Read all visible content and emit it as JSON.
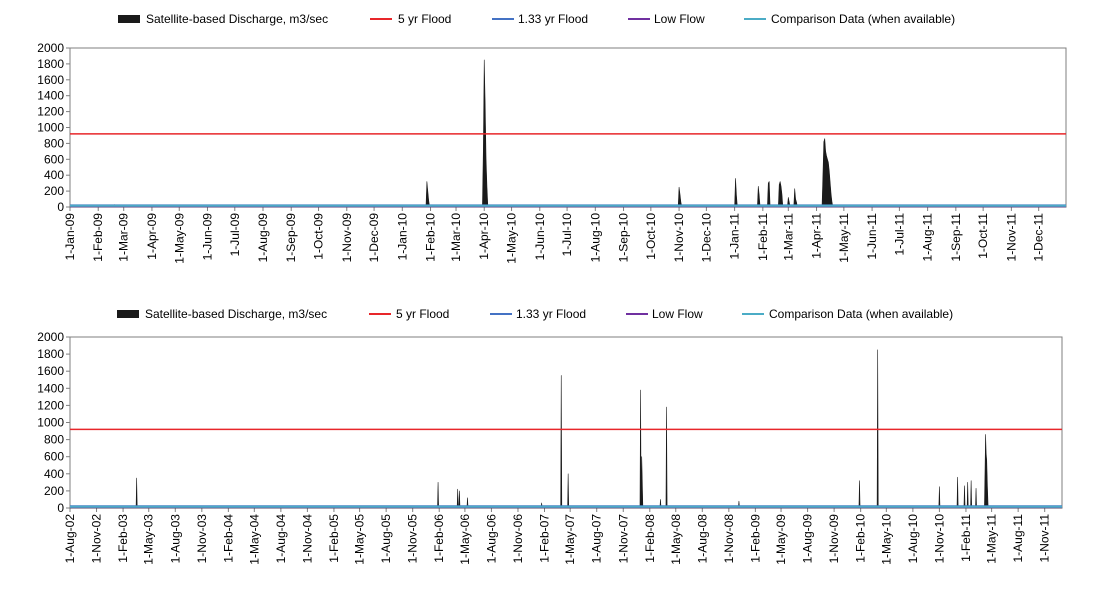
{
  "legend": {
    "discharge": "Satellite-based Discharge, m3/sec",
    "flood5": "5 yr Flood",
    "flood133": "1.33 yr Flood",
    "lowflow": "Low Flow",
    "comparison": "Comparison Data (when available)"
  },
  "colors": {
    "discharge": "#1a1a1a",
    "flood5": "#e8262a",
    "flood133": "#4472c4",
    "lowflow": "#7030a0",
    "comparison": "#4bacc6",
    "axis": "#7f7f7f"
  },
  "chart_data": [
    {
      "type": "area",
      "x_start": "2009-01-01",
      "x_end": "2011-12-31",
      "ylim": [
        0,
        2000
      ],
      "yticks": [
        0,
        200,
        400,
        600,
        800,
        1000,
        1200,
        1400,
        1600,
        1800,
        2000
      ],
      "xtick_labels": [
        "1-Jan-09",
        "1-Feb-09",
        "1-Mar-09",
        "1-Apr-09",
        "1-May-09",
        "1-Jun-09",
        "1-Jul-09",
        "1-Aug-09",
        "1-Sep-09",
        "1-Oct-09",
        "1-Nov-09",
        "1-Dec-09",
        "1-Jan-10",
        "1-Feb-10",
        "1-Mar-10",
        "1-Apr-10",
        "1-May-10",
        "1-Jun-10",
        "1-Jul-10",
        "1-Aug-10",
        "1-Sep-10",
        "1-Oct-10",
        "1-Nov-10",
        "1-Dec-10",
        "1-Jan-11",
        "1-Feb-11",
        "1-Mar-11",
        "1-Apr-11",
        "1-May-11",
        "1-Jun-11",
        "1-Jul-11",
        "1-Aug-11",
        "1-Sep-11",
        "1-Oct-11",
        "1-Nov-11",
        "1-Dec-11"
      ],
      "series": [
        {
          "name": "Satellite-based Discharge, m3/sec",
          "values": [
            [
              "2009-01-01",
              0
            ],
            [
              "2009-02-18",
              0
            ],
            [
              "2009-02-19",
              30
            ],
            [
              "2009-02-20",
              0
            ],
            [
              "2010-01-27",
              0
            ],
            [
              "2010-01-28",
              320
            ],
            [
              "2010-01-29",
              200
            ],
            [
              "2010-01-30",
              80
            ],
            [
              "2010-01-31",
              0
            ],
            [
              "2010-03-30",
              0
            ],
            [
              "2010-03-31",
              720
            ],
            [
              "2010-04-01",
              1850
            ],
            [
              "2010-04-02",
              1300
            ],
            [
              "2010-04-03",
              600
            ],
            [
              "2010-04-04",
              250
            ],
            [
              "2010-04-05",
              0
            ],
            [
              "2010-10-31",
              0
            ],
            [
              "2010-11-01",
              250
            ],
            [
              "2010-11-02",
              160
            ],
            [
              "2010-11-03",
              60
            ],
            [
              "2010-11-04",
              0
            ],
            [
              "2011-01-01",
              0
            ],
            [
              "2011-01-02",
              360
            ],
            [
              "2011-01-03",
              150
            ],
            [
              "2011-01-04",
              0
            ],
            [
              "2011-01-26",
              0
            ],
            [
              "2011-01-27",
              260
            ],
            [
              "2011-01-28",
              150
            ],
            [
              "2011-01-29",
              0
            ],
            [
              "2011-02-06",
              0
            ],
            [
              "2011-02-07",
              300
            ],
            [
              "2011-02-08",
              320
            ],
            [
              "2011-02-09",
              0
            ],
            [
              "2011-02-18",
              0
            ],
            [
              "2011-02-19",
              280
            ],
            [
              "2011-02-20",
              320
            ],
            [
              "2011-02-21",
              260
            ],
            [
              "2011-02-22",
              160
            ],
            [
              "2011-02-23",
              0
            ],
            [
              "2011-02-28",
              0
            ],
            [
              "2011-03-01",
              120
            ],
            [
              "2011-03-02",
              60
            ],
            [
              "2011-03-03",
              0
            ],
            [
              "2011-03-07",
              0
            ],
            [
              "2011-03-08",
              230
            ],
            [
              "2011-03-09",
              100
            ],
            [
              "2011-03-10",
              60
            ],
            [
              "2011-03-11",
              0
            ],
            [
              "2011-04-07",
              0
            ],
            [
              "2011-04-08",
              400
            ],
            [
              "2011-04-09",
              820
            ],
            [
              "2011-04-10",
              860
            ],
            [
              "2011-04-11",
              700
            ],
            [
              "2011-04-12",
              640
            ],
            [
              "2011-04-13",
              600
            ],
            [
              "2011-04-14",
              560
            ],
            [
              "2011-04-15",
              450
            ],
            [
              "2011-04-16",
              300
            ],
            [
              "2011-04-17",
              160
            ],
            [
              "2011-04-18",
              60
            ],
            [
              "2011-04-19",
              0
            ],
            [
              "2011-12-31",
              0
            ]
          ]
        },
        {
          "name": "5 yr Flood",
          "value": 920
        },
        {
          "name": "1.33 yr Flood",
          "value": 20
        },
        {
          "name": "Low Flow",
          "value": 10
        },
        {
          "name": "Comparison Data (when available)",
          "value": 15
        }
      ],
      "legend_position": "top"
    },
    {
      "type": "area",
      "x_start": "2002-08-01",
      "x_end": "2011-12-31",
      "ylim": [
        0,
        2000
      ],
      "yticks": [
        0,
        200,
        400,
        600,
        800,
        1000,
        1200,
        1400,
        1600,
        1800,
        2000
      ],
      "xtick_labels": [
        "1-Aug-02",
        "1-Nov-02",
        "1-Feb-03",
        "1-May-03",
        "1-Aug-03",
        "1-Nov-03",
        "1-Feb-04",
        "1-May-04",
        "1-Aug-04",
        "1-Nov-04",
        "1-Feb-05",
        "1-May-05",
        "1-Aug-05",
        "1-Nov-05",
        "1-Feb-06",
        "1-May-06",
        "1-Aug-06",
        "1-Nov-06",
        "1-Feb-07",
        "1-May-07",
        "1-Aug-07",
        "1-Nov-07",
        "1-Feb-08",
        "1-May-08",
        "1-Aug-08",
        "1-Nov-08",
        "1-Feb-09",
        "1-May-09",
        "1-Aug-09",
        "1-Nov-09",
        "1-Feb-10",
        "1-May-10",
        "1-Aug-10",
        "1-Nov-10",
        "1-Feb-11",
        "1-May-11",
        "1-Aug-11",
        "1-Nov-11"
      ],
      "series": [
        {
          "name": "Satellite-based Discharge, m3/sec",
          "values": [
            [
              "2002-08-01",
              0
            ],
            [
              "2003-03-18",
              0
            ],
            [
              "2003-03-20",
              350
            ],
            [
              "2003-03-22",
              0
            ],
            [
              "2006-01-26",
              0
            ],
            [
              "2006-01-28",
              300
            ],
            [
              "2006-01-30",
              0
            ],
            [
              "2006-04-04",
              0
            ],
            [
              "2006-04-06",
              220
            ],
            [
              "2006-04-08",
              0
            ],
            [
              "2006-04-10",
              0
            ],
            [
              "2006-04-12",
              200
            ],
            [
              "2006-04-14",
              0
            ],
            [
              "2006-05-08",
              0
            ],
            [
              "2006-05-10",
              120
            ],
            [
              "2006-05-12",
              0
            ],
            [
              "2007-01-20",
              0
            ],
            [
              "2007-01-22",
              60
            ],
            [
              "2007-01-24",
              0
            ],
            [
              "2007-03-29",
              0
            ],
            [
              "2007-03-31",
              1550
            ],
            [
              "2007-04-02",
              0
            ],
            [
              "2007-04-22",
              0
            ],
            [
              "2007-04-24",
              400
            ],
            [
              "2007-04-26",
              0
            ],
            [
              "2007-12-29",
              0
            ],
            [
              "2007-12-31",
              1380
            ],
            [
              "2008-01-02",
              0
            ],
            [
              "2008-01-04",
              600
            ],
            [
              "2008-01-06",
              300
            ],
            [
              "2008-01-08",
              0
            ],
            [
              "2008-03-07",
              0
            ],
            [
              "2008-03-09",
              100
            ],
            [
              "2008-03-11",
              0
            ],
            [
              "2008-03-28",
              0
            ],
            [
              "2008-03-30",
              1180
            ],
            [
              "2008-04-01",
              0
            ],
            [
              "2008-12-04",
              0
            ],
            [
              "2008-12-06",
              80
            ],
            [
              "2008-12-08",
              0
            ],
            [
              "2010-01-26",
              0
            ],
            [
              "2010-01-28",
              320
            ],
            [
              "2010-01-30",
              0
            ],
            [
              "2010-03-30",
              0
            ],
            [
              "2010-04-01",
              1850
            ],
            [
              "2010-04-03",
              0
            ],
            [
              "2010-10-30",
              0
            ],
            [
              "2010-11-01",
              250
            ],
            [
              "2010-11-03",
              0
            ],
            [
              "2011-01-01",
              0
            ],
            [
              "2011-01-03",
              360
            ],
            [
              "2011-01-05",
              0
            ],
            [
              "2011-01-25",
              0
            ],
            [
              "2011-01-27",
              260
            ],
            [
              "2011-01-29",
              0
            ],
            [
              "2011-02-05",
              0
            ],
            [
              "2011-02-07",
              300
            ],
            [
              "2011-02-09",
              0
            ],
            [
              "2011-02-17",
              0
            ],
            [
              "2011-02-19",
              320
            ],
            [
              "2011-02-21",
              0
            ],
            [
              "2011-03-06",
              0
            ],
            [
              "2011-03-08",
              230
            ],
            [
              "2011-03-10",
              0
            ],
            [
              "2011-04-06",
              0
            ],
            [
              "2011-04-08",
              400
            ],
            [
              "2011-04-10",
              860
            ],
            [
              "2011-04-12",
              640
            ],
            [
              "2011-04-14",
              560
            ],
            [
              "2011-04-16",
              300
            ],
            [
              "2011-04-19",
              0
            ],
            [
              "2011-12-31",
              0
            ]
          ]
        },
        {
          "name": "5 yr Flood",
          "value": 920
        },
        {
          "name": "1.33 yr Flood",
          "value": 20
        },
        {
          "name": "Low Flow",
          "value": 10
        },
        {
          "name": "Comparison Data (when available)",
          "value": 15
        }
      ],
      "legend_position": "top"
    }
  ]
}
